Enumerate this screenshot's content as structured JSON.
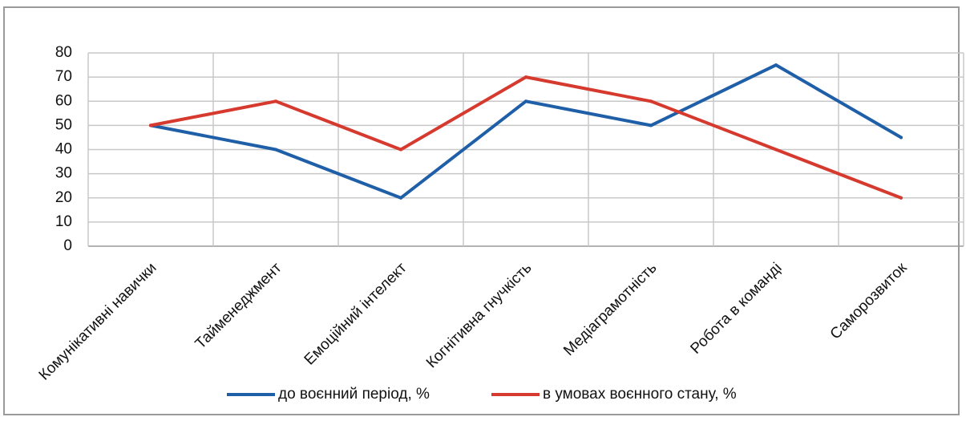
{
  "chart_data": {
    "type": "line",
    "title": "",
    "xlabel": "",
    "ylabel": "",
    "categories": [
      "Комунікативні навички",
      "Тайменеджмент",
      "Емоційний інтелект",
      "Когнітивна гнучкість",
      "Медіаграмотність",
      "Робота в команді",
      "Саморозвиток"
    ],
    "ylim": [
      0,
      80
    ],
    "yticks": [
      0,
      10,
      20,
      30,
      40,
      50,
      60,
      70,
      80
    ],
    "grid": true,
    "legend": "bottom",
    "series": [
      {
        "name": "до воєнний період, %",
        "color": "#1f5fa8",
        "values": [
          50,
          40,
          20,
          60,
          50,
          75,
          45
        ]
      },
      {
        "name": "в умовах воєнного стану, %",
        "color": "#d63a2f",
        "values": [
          50,
          60,
          40,
          70,
          60,
          40,
          20
        ]
      }
    ]
  }
}
